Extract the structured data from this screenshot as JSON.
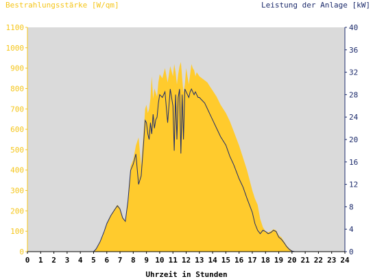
{
  "labels": {
    "left_axis": "Bestrahlungsstärke [W/qm]",
    "right_axis": "Leistung der Anlage [kW]",
    "x_axis": "Uhrzeit in Stunden"
  },
  "colors": {
    "irradiance_fill": "#ffcb2d",
    "power_line": "#1b2a6b",
    "plot_background": "#dadada",
    "left_axis": "#f5c518",
    "right_axis": "#1b2a6b"
  },
  "chart_data": {
    "type": "area",
    "x_ticks": [
      "0",
      "1",
      "2",
      "3",
      "4",
      "5",
      "6",
      "7",
      "8",
      "9",
      "10",
      "11",
      "12",
      "13",
      "14",
      "15",
      "16",
      "17",
      "18",
      "19",
      "20",
      "21",
      "22",
      "23",
      "24"
    ],
    "y_left_ticks": [
      "0",
      "100",
      "200",
      "300",
      "400",
      "500",
      "600",
      "700",
      "800",
      "900",
      "1000",
      "1100"
    ],
    "y_right_ticks": [
      "0",
      "4",
      "8",
      "12",
      "16",
      "20",
      "24",
      "28",
      "32",
      "36",
      "40"
    ],
    "xlim": [
      0,
      24
    ],
    "ylim_left": [
      0,
      1100
    ],
    "ylim_right": [
      0,
      40
    ],
    "series": [
      {
        "axis": "left",
        "style": "area",
        "x": [
          0,
          5.0,
          5.2,
          5.5,
          5.8,
          6.0,
          6.3,
          6.6,
          6.8,
          7.0,
          7.2,
          7.4,
          7.6,
          7.8,
          8.0,
          8.2,
          8.4,
          8.6,
          8.8,
          8.9,
          9.0,
          9.1,
          9.2,
          9.3,
          9.4,
          9.5,
          9.6,
          9.7,
          9.8,
          9.9,
          10.0,
          10.2,
          10.4,
          10.6,
          10.8,
          11.0,
          11.1,
          11.2,
          11.3,
          11.4,
          11.5,
          11.6,
          11.7,
          11.8,
          11.9,
          12.0,
          12.1,
          12.2,
          12.3,
          12.4,
          12.5,
          12.6,
          12.7,
          12.8,
          12.9,
          13.0,
          13.2,
          13.4,
          13.6,
          13.8,
          14.0,
          14.3,
          14.6,
          15.0,
          15.3,
          15.6,
          16.0,
          16.3,
          16.6,
          17.0,
          17.2,
          17.4,
          17.6,
          17.8,
          18.0,
          18.2,
          18.4,
          18.6,
          18.8,
          19.0,
          19.2,
          19.4,
          19.6,
          19.8,
          20.0,
          20.2,
          20.4,
          24
        ],
        "values": [
          0,
          0,
          15,
          50,
          100,
          140,
          180,
          210,
          230,
          215,
          170,
          150,
          250,
          420,
          450,
          520,
          560,
          420,
          600,
          700,
          720,
          680,
          700,
          750,
          860,
          750,
          800,
          780,
          760,
          830,
          870,
          850,
          900,
          830,
          910,
          860,
          920,
          880,
          820,
          870,
          910,
          930,
          850,
          780,
          820,
          900,
          860,
          820,
          870,
          920,
          900,
          890,
          860,
          880,
          870,
          860,
          850,
          840,
          830,
          810,
          790,
          760,
          720,
          680,
          640,
          590,
          520,
          460,
          400,
          300,
          260,
          230,
          160,
          120,
          100,
          95,
          100,
          110,
          105,
          80,
          70,
          50,
          30,
          15,
          5,
          0,
          0,
          0
        ]
      },
      {
        "axis": "right",
        "style": "line",
        "x": [
          0,
          5.0,
          5.2,
          5.5,
          5.8,
          6.0,
          6.3,
          6.6,
          6.8,
          7.0,
          7.2,
          7.4,
          7.6,
          7.8,
          8.0,
          8.2,
          8.4,
          8.6,
          8.8,
          8.9,
          9.0,
          9.1,
          9.2,
          9.3,
          9.4,
          9.5,
          9.6,
          9.7,
          9.8,
          9.9,
          10.0,
          10.2,
          10.4,
          10.6,
          10.8,
          11.0,
          11.1,
          11.2,
          11.3,
          11.4,
          11.5,
          11.6,
          11.7,
          11.8,
          11.9,
          12.0,
          12.1,
          12.2,
          12.3,
          12.4,
          12.5,
          12.6,
          12.7,
          12.8,
          12.9,
          13.0,
          13.2,
          13.4,
          13.6,
          13.8,
          14.0,
          14.3,
          14.6,
          15.0,
          15.3,
          15.6,
          16.0,
          16.3,
          16.6,
          17.0,
          17.2,
          17.4,
          17.6,
          17.8,
          18.0,
          18.2,
          18.4,
          18.6,
          18.8,
          19.0,
          19.2,
          19.4,
          19.6,
          19.8,
          20.0,
          20.2,
          20.4,
          24
        ],
        "values": [
          0,
          0,
          0.5,
          1.8,
          3.6,
          5.0,
          6.4,
          7.5,
          8.2,
          7.6,
          6.0,
          5.4,
          9.0,
          14.5,
          15.6,
          17.4,
          12.0,
          13.5,
          20.0,
          23.4,
          23.0,
          21.0,
          20.0,
          23.0,
          21.0,
          24.5,
          22.0,
          23.5,
          24.0,
          26.5,
          28.0,
          27.5,
          28.5,
          23.0,
          29.0,
          26.0,
          18.0,
          28.0,
          20.0,
          27.5,
          29.0,
          17.5,
          28.0,
          20.0,
          29.0,
          28.5,
          28.0,
          27.5,
          28.5,
          29.0,
          28.5,
          28.0,
          28.5,
          28.0,
          27.5,
          27.5,
          27.0,
          26.5,
          25.5,
          24.5,
          23.5,
          22.0,
          20.5,
          19.0,
          17.0,
          15.5,
          13.0,
          11.5,
          9.5,
          7.0,
          5.0,
          3.8,
          3.2,
          3.8,
          3.6,
          3.2,
          3.4,
          3.8,
          3.6,
          2.6,
          2.2,
          1.6,
          0.9,
          0.4,
          0.1,
          0,
          0,
          0
        ]
      }
    ]
  }
}
